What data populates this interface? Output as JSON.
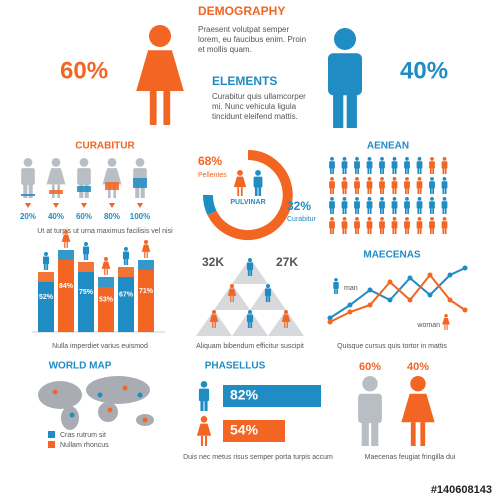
{
  "header": {
    "title": "DEMOGRAPHY",
    "title_text": [
      "Praesent volutpat semper",
      "lorem, eu faucibus enim. Proin",
      "et mollis quam."
    ],
    "subtitle": "ELEMENTS",
    "subtitle_text": [
      "Curabitur quis ullamcorper",
      "mi. Nunc vehicula ligula",
      "tincidunt eleifend mattis."
    ],
    "women": "60%",
    "men": "40%"
  },
  "curabitur": {
    "title": "CURABITUR",
    "labels": [
      "20%",
      "40%",
      "60%",
      "80%",
      "100%"
    ],
    "caption": "Ut at turpis ut urna maximus facilisis vel nisi"
  },
  "donut": {
    "left_value": "68%",
    "left_label": "Pellentes",
    "center": "PULVINAR",
    "right_value": "32%",
    "right_label": "Curabitur"
  },
  "aenean": {
    "title": "AENEAN"
  },
  "bars": {
    "labels": [
      "52%",
      "84%",
      "75%",
      "53%",
      "67%",
      "71%"
    ],
    "caption": "Nulla imperdiet varius euismod"
  },
  "pyramid": {
    "left": "32K",
    "right": "27K",
    "caption": "Aliquam  bibendum efficitur suscipit"
  },
  "maecenas": {
    "title": "MAECENAS",
    "man": "man",
    "woman": "woman",
    "caption": "Quisque cursus quis tortor in mattis"
  },
  "world_map": {
    "title": "WORLD MAP",
    "legend": [
      "Cras rutrum sit",
      "Nullam rhoncus"
    ]
  },
  "phasellus": {
    "title": "PHASELLUS",
    "labels": [
      "82%",
      "54%"
    ],
    "caption": "Duis nec metus risus semper porta turpis accum"
  },
  "couple": {
    "left": "60%",
    "right": "40%",
    "caption": "Maecenas feugiat fringilla dui"
  },
  "footer": {
    "id": "#140608143"
  }
}
